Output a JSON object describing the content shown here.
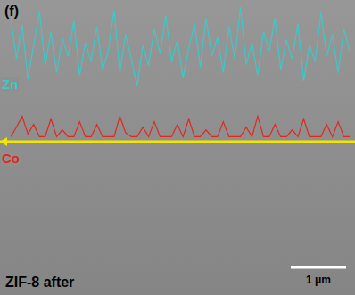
{
  "chart_data": {
    "type": "line",
    "x": [
      0,
      1,
      2,
      3,
      4,
      5,
      6,
      7,
      8,
      9,
      10,
      11,
      12,
      13,
      14,
      15,
      16,
      17,
      18,
      19,
      20,
      21,
      22,
      23,
      24,
      25,
      26,
      27,
      28,
      29,
      30,
      31,
      32,
      33,
      34,
      35,
      36,
      37,
      38,
      39,
      40,
      41,
      42,
      43,
      44,
      45,
      46,
      47,
      48,
      49,
      50,
      51,
      52,
      53,
      54,
      55,
      56,
      57,
      58,
      59
    ],
    "xlim": [
      0,
      59
    ],
    "ylim": [
      0,
      100
    ],
    "tick_labels": false,
    "grid": false,
    "series": [
      {
        "name": "Zn",
        "color": "#3ec8c8",
        "values": [
          90,
          60,
          85,
          45,
          70,
          95,
          55,
          80,
          50,
          75,
          62,
          88,
          48,
          72,
          58,
          84,
          52,
          66,
          96,
          50,
          78,
          60,
          40,
          70,
          55,
          82,
          64,
          92,
          58,
          74,
          46,
          68,
          86,
          54,
          90,
          62,
          76,
          50,
          84,
          60,
          98,
          56,
          72,
          48,
          80,
          66,
          90,
          52,
          74,
          60,
          86,
          44,
          70,
          58,
          94,
          62,
          78,
          50,
          82,
          66
        ]
      },
      {
        "name": "Co",
        "color": "#e0281e",
        "values": [
          3,
          10,
          18,
          5,
          12,
          3,
          3,
          16,
          3,
          8,
          3,
          3,
          14,
          3,
          3,
          12,
          3,
          3,
          3,
          18,
          6,
          3,
          3,
          10,
          3,
          14,
          3,
          3,
          3,
          12,
          3,
          16,
          3,
          3,
          8,
          3,
          3,
          14,
          3,
          3,
          3,
          10,
          3,
          18,
          3,
          3,
          12,
          3,
          3,
          8,
          3,
          16,
          3,
          3,
          3,
          12,
          3,
          14,
          3,
          3
        ]
      }
    ]
  },
  "image": {
    "panel_label": "(f)",
    "caption": "ZIF-8 after",
    "scale_bar": "1 μm"
  }
}
